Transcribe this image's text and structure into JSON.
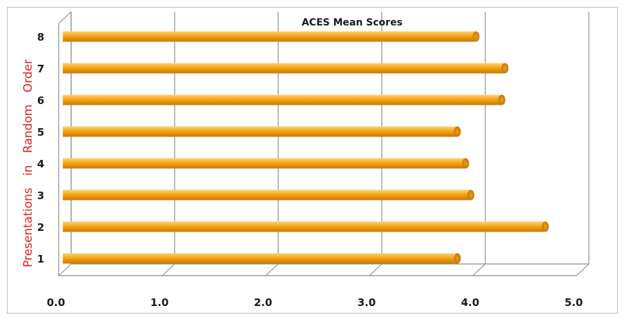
{
  "chart_data": {
    "type": "bar",
    "orientation": "horizontal",
    "title": "ACES Mean Scores",
    "ylabel_words": [
      "Presentations",
      "in",
      "Random",
      "Order"
    ],
    "xlabel": "",
    "categories": [
      "1",
      "2",
      "3",
      "4",
      "5",
      "6",
      "7",
      "8"
    ],
    "series": [
      {
        "values": [
          3.85,
          4.7,
          3.98,
          3.93,
          3.85,
          4.28,
          4.31,
          4.03
        ]
      }
    ],
    "xlim": [
      0,
      5
    ],
    "x_ticks": [
      "0.0",
      "1.0",
      "2.0",
      "3.0",
      "4.0",
      "5.0"
    ],
    "grid": true,
    "bar_color": "#f5a30f",
    "ylabel_color": "#e02020"
  }
}
